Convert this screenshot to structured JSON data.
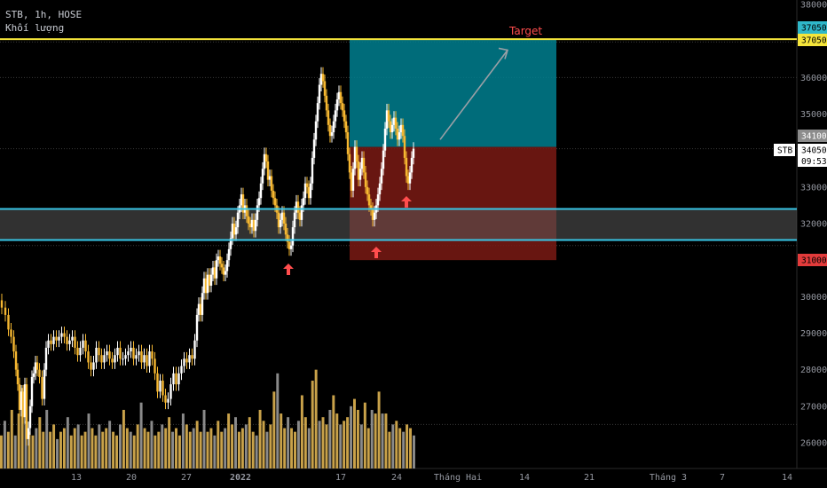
{
  "header": {
    "symbol_line": "STB, 1h, HOSE",
    "volume_label": "Khối lượng"
  },
  "colors": {
    "background": "#000000",
    "candle_up": "#ffffff",
    "candle_down": "#f5b731",
    "candle_bar_down": "#d4a03a",
    "volume_up": "#8a8a8a",
    "volume_down": "#c9a24a",
    "resistance_line": "#f5e53b",
    "support_lines": "#38c6e6",
    "target_zone": "#007f8f",
    "stop_zone": "#7a1a14",
    "arrow": "#ff4d4d",
    "target_text": "#ff4d4d"
  },
  "annotations": {
    "target_label": "Target",
    "symbol_tag": "STB",
    "countdown": "09:53"
  },
  "chart_data": {
    "type": "candlestick",
    "title": "STB, 1h, HOSE",
    "y_ticks": [
      "38000",
      "37000",
      "36000",
      "35000",
      "34000",
      "33000",
      "32000",
      "31000",
      "30000",
      "29000",
      "28000",
      "27000",
      "26000"
    ],
    "x_ticks": [
      "13",
      "20",
      "27",
      "2022",
      "17",
      "24",
      "Tháng Hai",
      "14",
      "21",
      "Tháng 3",
      "7",
      "14"
    ],
    "ylim": [
      25500,
      38300
    ],
    "price_tags": [
      {
        "label": "37050",
        "value": 37050,
        "color": "#2fb7c9"
      },
      {
        "label": "37050",
        "value": 37050,
        "color": "#f5e53b"
      },
      {
        "label": "34100",
        "value": 34100,
        "color": "#8c8c8c"
      },
      {
        "label": "34050",
        "value": 34050,
        "color": "#ffffff"
      },
      {
        "label": "31000",
        "value": 31000,
        "color": "#e23b3b"
      }
    ],
    "levels": {
      "resistance": 37050,
      "support_upper": 32400,
      "support_lower": 31550,
      "entry": 34100,
      "target": 37050,
      "stop": 31000
    },
    "price_path": [
      [
        0,
        29900
      ],
      [
        4,
        29700
      ],
      [
        8,
        29500
      ],
      [
        11,
        29100
      ],
      [
        14,
        28900
      ],
      [
        17,
        28500
      ],
      [
        19,
        28000
      ],
      [
        21,
        27600
      ],
      [
        23,
        26900
      ],
      [
        25,
        27400
      ],
      [
        27,
        26700
      ],
      [
        29,
        27600
      ],
      [
        31,
        26100
      ],
      [
        33,
        26400
      ],
      [
        35,
        27000
      ],
      [
        37,
        27800
      ],
      [
        39,
        27900
      ],
      [
        41,
        28200
      ],
      [
        43,
        28000
      ],
      [
        46,
        27800
      ],
      [
        49,
        27200
      ],
      [
        51,
        28000
      ],
      [
        53,
        28600
      ],
      [
        56,
        28800
      ],
      [
        59,
        28700
      ],
      [
        62,
        28900
      ],
      [
        65,
        28800
      ],
      [
        68,
        28900
      ],
      [
        71,
        29000
      ],
      [
        74,
        28900
      ],
      [
        77,
        28700
      ],
      [
        80,
        28800
      ],
      [
        83,
        28900
      ],
      [
        86,
        28600
      ],
      [
        89,
        28400
      ],
      [
        92,
        28600
      ],
      [
        95,
        28800
      ],
      [
        98,
        28500
      ],
      [
        101,
        28200
      ],
      [
        104,
        28000
      ],
      [
        107,
        28200
      ],
      [
        110,
        28600
      ],
      [
        113,
        28400
      ],
      [
        116,
        28200
      ],
      [
        119,
        28400
      ],
      [
        122,
        28500
      ],
      [
        125,
        28300
      ],
      [
        128,
        28200
      ],
      [
        131,
        28400
      ],
      [
        134,
        28600
      ],
      [
        137,
        28300
      ],
      [
        140,
        28300
      ],
      [
        143,
        28400
      ],
      [
        146,
        28500
      ],
      [
        149,
        28600
      ],
      [
        152,
        28300
      ],
      [
        155,
        28400
      ],
      [
        158,
        28500
      ],
      [
        161,
        28200
      ],
      [
        164,
        28400
      ],
      [
        167,
        28100
      ],
      [
        170,
        28500
      ],
      [
        173,
        28300
      ],
      [
        176,
        27900
      ],
      [
        179,
        27400
      ],
      [
        182,
        27700
      ],
      [
        185,
        27300
      ],
      [
        188,
        27100
      ],
      [
        191,
        27200
      ],
      [
        194,
        27600
      ],
      [
        197,
        27900
      ],
      [
        200,
        27600
      ],
      [
        203,
        27900
      ],
      [
        206,
        28100
      ],
      [
        209,
        28300
      ],
      [
        212,
        28200
      ],
      [
        215,
        28400
      ],
      [
        218,
        28300
      ],
      [
        221,
        28800
      ],
      [
        223,
        29500
      ],
      [
        225,
        29800
      ],
      [
        227,
        29500
      ],
      [
        229,
        30100
      ],
      [
        231,
        30500
      ],
      [
        233,
        30100
      ],
      [
        235,
        30600
      ],
      [
        237,
        30300
      ],
      [
        239,
        30600
      ],
      [
        241,
        30800
      ],
      [
        243,
        30500
      ],
      [
        245,
        31000
      ],
      [
        247,
        31100
      ],
      [
        249,
        30900
      ],
      [
        251,
        30800
      ],
      [
        253,
        30600
      ],
      [
        255,
        30700
      ],
      [
        257,
        31000
      ],
      [
        259,
        31300
      ],
      [
        261,
        31600
      ],
      [
        263,
        32000
      ],
      [
        265,
        31700
      ],
      [
        267,
        31900
      ],
      [
        269,
        32300
      ],
      [
        271,
        32500
      ],
      [
        273,
        32800
      ],
      [
        275,
        32300
      ],
      [
        277,
        32500
      ],
      [
        279,
        32200
      ],
      [
        281,
        32000
      ],
      [
        283,
        31900
      ],
      [
        285,
        32100
      ],
      [
        287,
        31800
      ],
      [
        289,
        32100
      ],
      [
        291,
        32500
      ],
      [
        293,
        32700
      ],
      [
        295,
        33100
      ],
      [
        297,
        33500
      ],
      [
        299,
        33900
      ],
      [
        301,
        33700
      ],
      [
        303,
        33200
      ],
      [
        305,
        33300
      ],
      [
        307,
        32900
      ],
      [
        309,
        32700
      ],
      [
        311,
        32500
      ],
      [
        313,
        32300
      ],
      [
        315,
        31900
      ],
      [
        317,
        32100
      ],
      [
        319,
        32300
      ],
      [
        321,
        32000
      ],
      [
        323,
        31700
      ],
      [
        325,
        31500
      ],
      [
        327,
        31300
      ],
      [
        329,
        31400
      ],
      [
        331,
        31900
      ],
      [
        333,
        32300
      ],
      [
        335,
        32600
      ],
      [
        337,
        32300
      ],
      [
        339,
        32100
      ],
      [
        341,
        32500
      ],
      [
        343,
        32700
      ],
      [
        345,
        33100
      ],
      [
        347,
        33000
      ],
      [
        349,
        32700
      ],
      [
        351,
        33100
      ],
      [
        353,
        33800
      ],
      [
        355,
        34300
      ],
      [
        357,
        34800
      ],
      [
        359,
        35300
      ],
      [
        361,
        35800
      ],
      [
        363,
        36100
      ],
      [
        365,
        35900
      ],
      [
        367,
        35500
      ],
      [
        369,
        35100
      ],
      [
        371,
        34700
      ],
      [
        373,
        34400
      ],
      [
        375,
        34500
      ],
      [
        377,
        34800
      ],
      [
        379,
        35100
      ],
      [
        381,
        35400
      ],
      [
        383,
        35600
      ],
      [
        385,
        35300
      ],
      [
        387,
        35100
      ],
      [
        389,
        34800
      ],
      [
        391,
        34500
      ],
      [
        393,
        33900
      ],
      [
        395,
        33400
      ],
      [
        397,
        32900
      ],
      [
        399,
        33500
      ],
      [
        401,
        34100
      ],
      [
        403,
        33700
      ],
      [
        405,
        33200
      ],
      [
        407,
        33500
      ],
      [
        409,
        33800
      ],
      [
        411,
        33400
      ],
      [
        413,
        33000
      ],
      [
        415,
        32800
      ],
      [
        417,
        32500
      ],
      [
        419,
        32400
      ],
      [
        421,
        32100
      ],
      [
        423,
        32300
      ],
      [
        425,
        32500
      ],
      [
        427,
        32800
      ],
      [
        429,
        33100
      ],
      [
        431,
        33500
      ],
      [
        433,
        34000
      ],
      [
        435,
        34600
      ],
      [
        437,
        35100
      ],
      [
        439,
        34800
      ],
      [
        441,
        34500
      ],
      [
        443,
        34700
      ],
      [
        445,
        34900
      ],
      [
        447,
        34600
      ],
      [
        449,
        34300
      ],
      [
        451,
        34500
      ],
      [
        453,
        34700
      ],
      [
        455,
        34400
      ],
      [
        457,
        33800
      ],
      [
        459,
        33300
      ],
      [
        461,
        33100
      ],
      [
        463,
        33400
      ],
      [
        465,
        33800
      ],
      [
        467,
        34050
      ]
    ],
    "volume_series": [
      26200,
      26600,
      26300,
      26900,
      26200,
      26800,
      27500,
      26600,
      26300,
      26200,
      26400,
      26700,
      26300,
      26900,
      26300,
      26500,
      26100,
      26300,
      26400,
      26700,
      26200,
      26400,
      26500,
      26200,
      26300,
      26800,
      26400,
      26200,
      26500,
      26300,
      26400,
      26600,
      26300,
      26200,
      26500,
      26900,
      26400,
      26300,
      26200,
      26500,
      27100,
      26400,
      26300,
      26600,
      26200,
      26300,
      26500,
      26400,
      26700,
      26300,
      26400,
      26200,
      26800,
      26500,
      26300,
      26400,
      26600,
      26300,
      26900,
      26300,
      26400,
      26200,
      26600,
      26300,
      26400,
      26800,
      26500,
      26700,
      26300,
      26400,
      26500,
      26700,
      26300,
      26200,
      26900,
      26600,
      26300,
      26500,
      27400,
      27900,
      26800,
      26400,
      26700,
      26400,
      26300,
      26600,
      27300,
      26700,
      26400,
      27700,
      28000,
      26600,
      26700,
      26500,
      26900,
      27300,
      26800,
      26500,
      26600,
      26700,
      27000,
      27200,
      26900,
      26500,
      27100,
      26400,
      26900,
      26800,
      27400,
      26800,
      26800,
      26300,
      26500,
      26600,
      26400,
      26300,
      26500,
      26400,
      26200
    ],
    "volume_x_range": [
      0,
      465
    ]
  }
}
